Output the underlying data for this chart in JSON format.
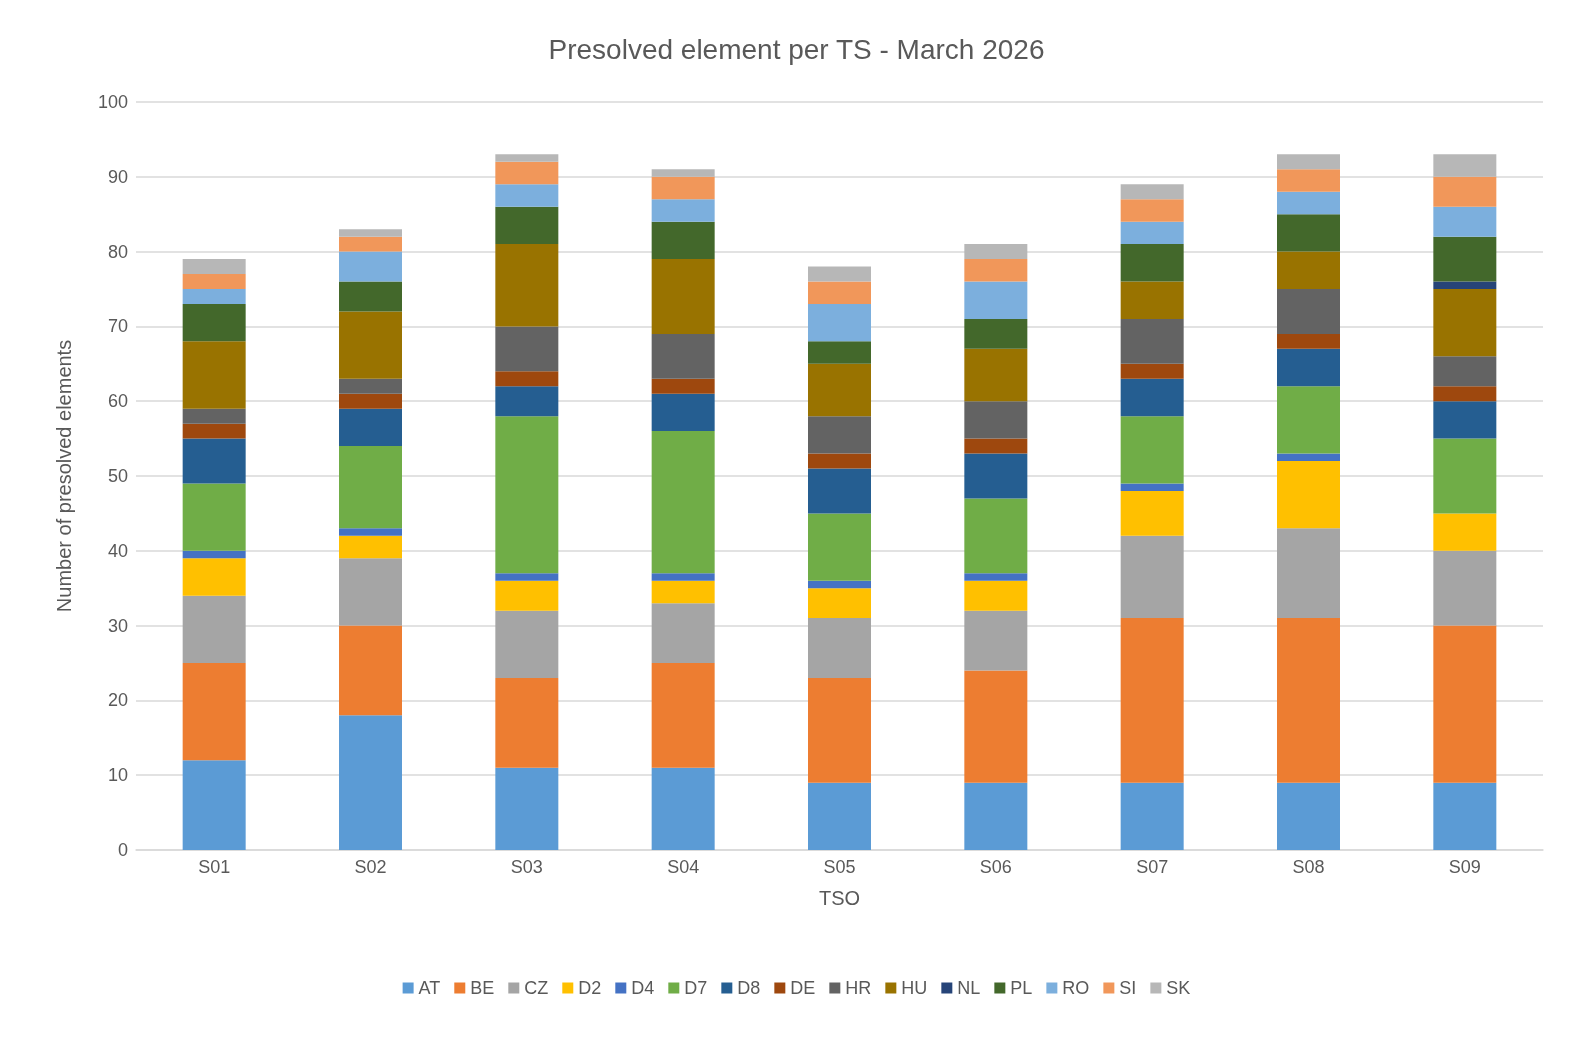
{
  "chart_data": {
    "type": "bar",
    "title": "Presolved element per TS - March 2026",
    "xlabel": "TSO",
    "ylabel": "Number of presolved elements",
    "categories": [
      "S01",
      "S02",
      "S03",
      "S04",
      "S05",
      "S06",
      "S07",
      "S08",
      "S09"
    ],
    "stacked": true,
    "ylim": [
      0,
      100
    ],
    "yticks": [
      0,
      10,
      20,
      30,
      40,
      50,
      60,
      70,
      80,
      90,
      100
    ],
    "grid": "y",
    "legend": "bottom",
    "series": [
      {
        "name": "AT",
        "color": "#5b9bd5",
        "values": [
          12,
          18,
          11,
          11,
          9,
          9,
          9,
          9,
          9
        ]
      },
      {
        "name": "BE",
        "color": "#ed7d31",
        "values": [
          13,
          12,
          12,
          14,
          14,
          15,
          22,
          22,
          21
        ]
      },
      {
        "name": "CZ",
        "color": "#a5a5a5",
        "values": [
          9,
          9,
          9,
          8,
          8,
          8,
          11,
          12,
          10
        ]
      },
      {
        "name": "D2",
        "color": "#ffc000",
        "values": [
          5,
          3,
          4,
          3,
          4,
          4,
          6,
          9,
          5
        ]
      },
      {
        "name": "D4",
        "color": "#4472c4",
        "values": [
          1,
          1,
          1,
          1,
          1,
          1,
          1,
          1,
          0
        ]
      },
      {
        "name": "D7",
        "color": "#70ad47",
        "values": [
          9,
          11,
          21,
          19,
          9,
          10,
          9,
          9,
          10
        ]
      },
      {
        "name": "D8",
        "color": "#255e91",
        "values": [
          6,
          5,
          4,
          5,
          6,
          6,
          5,
          5,
          5
        ]
      },
      {
        "name": "DE",
        "color": "#9e480e",
        "values": [
          2,
          2,
          2,
          2,
          2,
          2,
          2,
          2,
          2
        ]
      },
      {
        "name": "HR",
        "color": "#636363",
        "values": [
          2,
          2,
          6,
          6,
          5,
          5,
          6,
          6,
          4
        ]
      },
      {
        "name": "HU",
        "color": "#997300",
        "values": [
          9,
          9,
          11,
          10,
          7,
          7,
          5,
          5,
          9
        ]
      },
      {
        "name": "NL",
        "color": "#264478",
        "values": [
          0,
          0,
          0,
          0,
          0,
          0,
          0,
          0,
          1
        ]
      },
      {
        "name": "PL",
        "color": "#43682b",
        "values": [
          5,
          4,
          5,
          5,
          3,
          4,
          5,
          5,
          6
        ]
      },
      {
        "name": "RO",
        "color": "#7cafdd",
        "values": [
          2,
          4,
          3,
          3,
          5,
          5,
          3,
          3,
          4
        ]
      },
      {
        "name": "SI",
        "color": "#f1975a",
        "values": [
          2,
          2,
          3,
          3,
          3,
          3,
          3,
          3,
          4
        ]
      },
      {
        "name": "SK",
        "color": "#b7b7b7",
        "values": [
          2,
          1,
          1,
          1,
          2,
          2,
          2,
          2,
          3
        ]
      }
    ]
  }
}
